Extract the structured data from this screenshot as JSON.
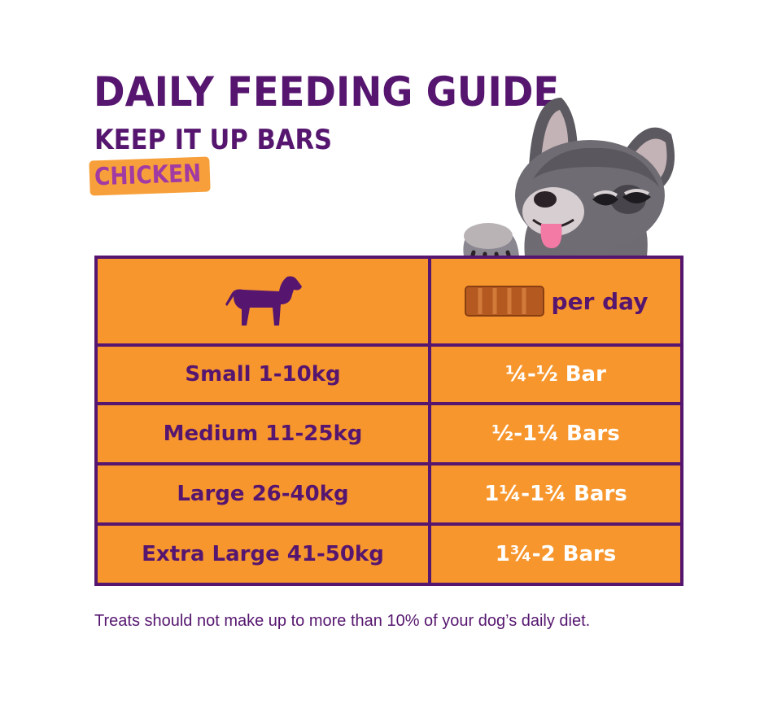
{
  "title": "DAILY FEEDING GUIDE",
  "subtitle": "KEEP IT UP BARS",
  "flavour": "CHICKEN",
  "table": {
    "header": {
      "dog_icon": "dog-silhouette-icon",
      "bar_icon": "treat-bar-icon",
      "per_day_label": "per day"
    },
    "rows": [
      {
        "size": "Small 1-10kg",
        "amount": "¼-½ Bar"
      },
      {
        "size": "Medium 11-25kg",
        "amount": "½-1¼ Bars"
      },
      {
        "size": "Large 26-40kg",
        "amount": "1¼-1¾ Bars"
      },
      {
        "size": "Extra Large 41-50kg",
        "amount": "1¾-2 Bars"
      }
    ]
  },
  "footnote": "Treats should not make up to more than 10% of your dog’s daily diet.",
  "colors": {
    "purple": "#56166f",
    "orange": "#f7962d",
    "badge_orange": "#f7a03b",
    "badge_text": "#a23aa3"
  },
  "illustration": "cartoon-french-bulldog-icon"
}
